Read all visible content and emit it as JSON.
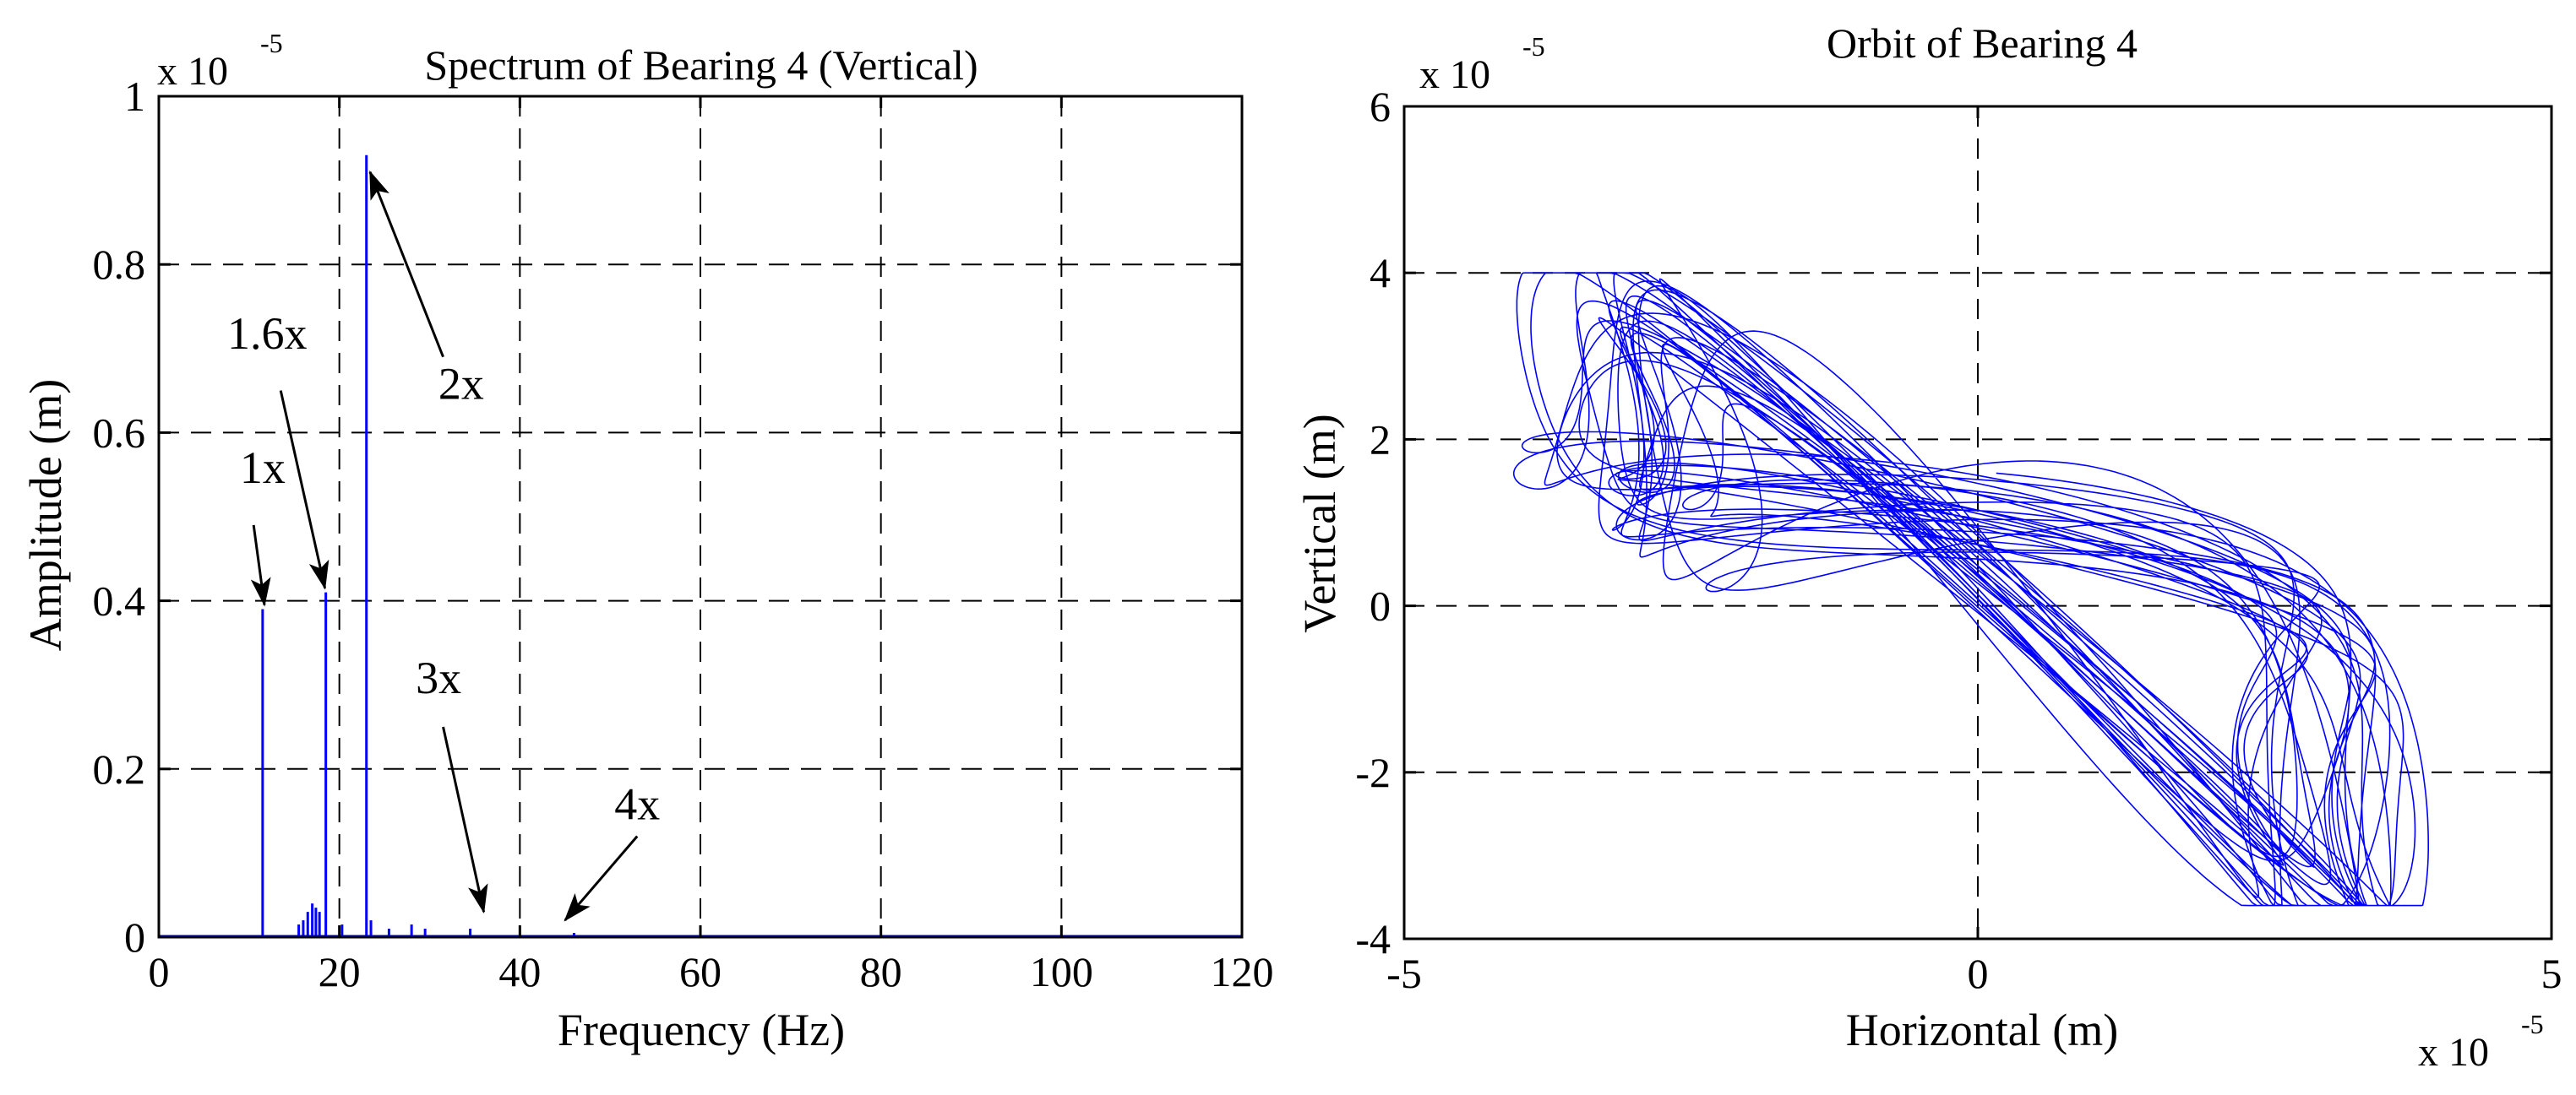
{
  "colors": {
    "line": "#0000ff",
    "axis": "#000000",
    "grid": "#000000",
    "background": "#ffffff"
  },
  "chart_data": [
    {
      "type": "line",
      "title": "Spectrum of Bearing 4 (Vertical)",
      "xlabel": "Frequency (Hz)",
      "ylabel": "Amplitude (m)",
      "y_multiplier": {
        "base": "x 10",
        "exponent": "-5"
      },
      "xlim": [
        0,
        120
      ],
      "ylim": [
        0,
        1
      ],
      "xticks": [
        "0",
        "20",
        "40",
        "60",
        "80",
        "100",
        "120"
      ],
      "yticks": [
        "0",
        "0.2",
        "0.4",
        "0.6",
        "0.8",
        "1"
      ],
      "grid": true,
      "peaks": [
        {
          "x": 11.5,
          "y": 0.39
        },
        {
          "x": 18.5,
          "y": 0.41
        },
        {
          "x": 23.0,
          "y": 0.93
        },
        {
          "x": 34.5,
          "y": 0.01
        },
        {
          "x": 46.0,
          "y": 0.005
        }
      ],
      "noise_band": [
        {
          "x": 16.5,
          "y": 0.03
        },
        {
          "x": 17.0,
          "y": 0.04
        },
        {
          "x": 17.4,
          "y": 0.035
        },
        {
          "x": 17.8,
          "y": 0.03
        },
        {
          "x": 16.0,
          "y": 0.02
        },
        {
          "x": 15.5,
          "y": 0.015
        },
        {
          "x": 20.3,
          "y": 0.015
        },
        {
          "x": 23.5,
          "y": 0.02
        },
        {
          "x": 28.0,
          "y": 0.015
        },
        {
          "x": 29.5,
          "y": 0.01
        },
        {
          "x": 25.5,
          "y": 0.01
        }
      ],
      "annotations": [
        {
          "text": "1x",
          "text_at": [
            11.5,
            0.54
          ],
          "arrow_from": [
            10.5,
            0.49
          ],
          "arrow_to": [
            11.7,
            0.395
          ]
        },
        {
          "text": "1.6x",
          "text_at": [
            12.0,
            0.7
          ],
          "arrow_from": [
            13.5,
            0.65
          ],
          "arrow_to": [
            18.4,
            0.415
          ]
        },
        {
          "text": "2x",
          "text_at": [
            33.5,
            0.64
          ],
          "arrow_from": [
            31.5,
            0.69
          ],
          "arrow_to": [
            23.4,
            0.91
          ]
        },
        {
          "text": "3x",
          "text_at": [
            31.0,
            0.29
          ],
          "arrow_from": [
            31.5,
            0.25
          ],
          "arrow_to": [
            36.0,
            0.03
          ]
        },
        {
          "text": "4x",
          "text_at": [
            53.0,
            0.14
          ],
          "arrow_from": [
            53.0,
            0.12
          ],
          "arrow_to": [
            45.0,
            0.02
          ]
        }
      ]
    },
    {
      "type": "line",
      "title": "Orbit of Bearing 4",
      "xlabel": "Horizontal (m)",
      "ylabel": "Vertical (m)",
      "x_multiplier": {
        "base": "x 10",
        "exponent": "-5"
      },
      "y_multiplier": {
        "base": "x 10",
        "exponent": "-5"
      },
      "xlim": [
        -5,
        5
      ],
      "ylim": [
        -4,
        6
      ],
      "xticks": [
        "-5",
        "0",
        "5"
      ],
      "yticks": [
        "-4",
        "-2",
        "0",
        "2",
        "4",
        "6"
      ],
      "grid": true,
      "orbit": {
        "shape": "figure-eight",
        "left_lobe_center": [
          -2.5,
          0.6
        ],
        "right_lobe_center": [
          2.4,
          -0.9
        ],
        "x_range": [
          -4.4,
          4.4
        ],
        "y_range": [
          -3.6,
          4.0
        ],
        "cycles": 26
      }
    }
  ]
}
